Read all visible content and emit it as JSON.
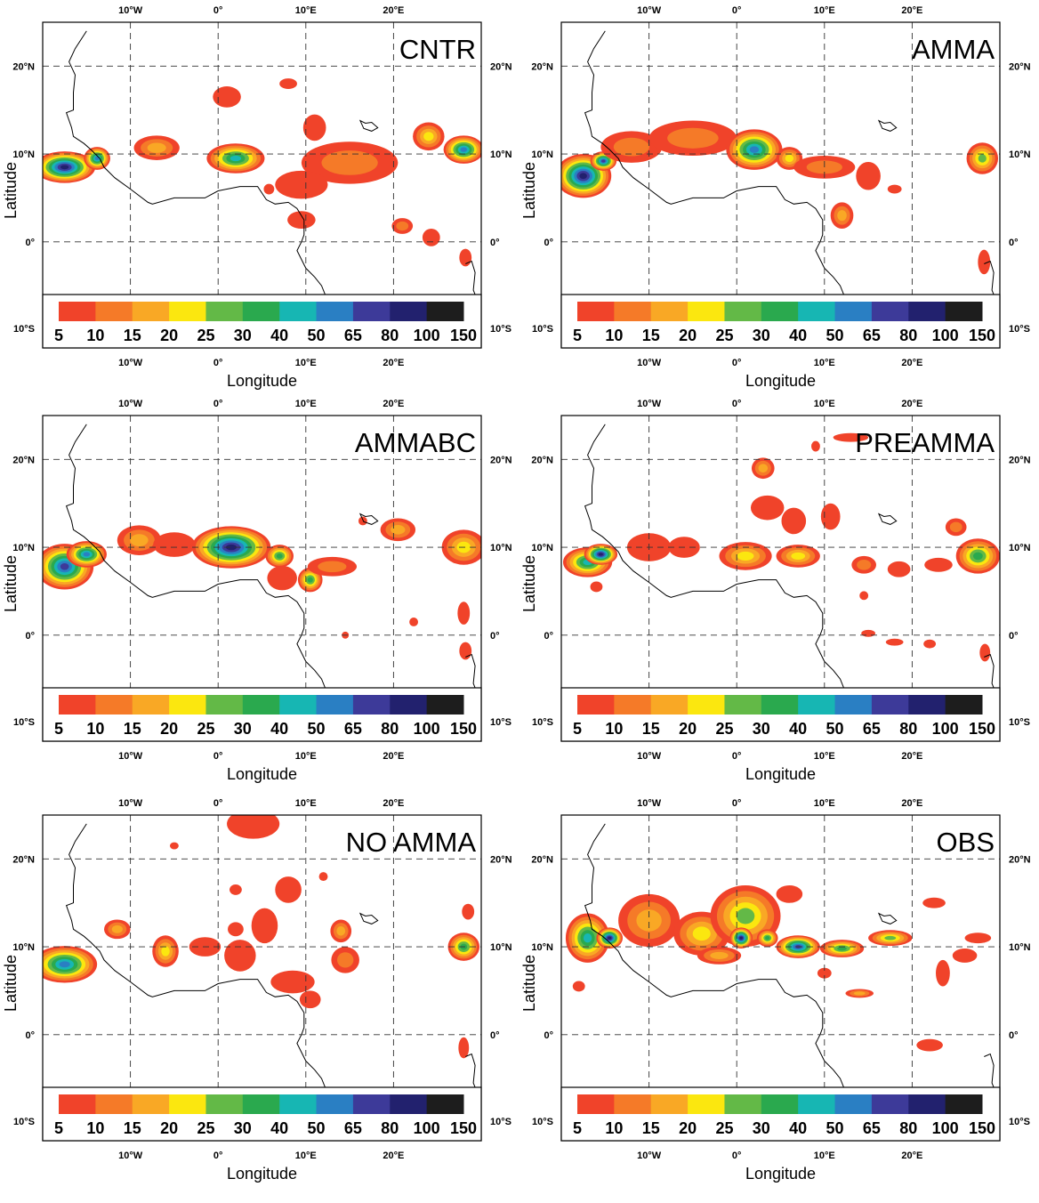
{
  "figure": {
    "colorbar": {
      "levels": [
        "5",
        "10",
        "15",
        "20",
        "25",
        "30",
        "40",
        "50",
        "65",
        "80",
        "100",
        "150"
      ],
      "colors": [
        "#f0432a",
        "#f57a28",
        "#f9a825",
        "#fbe70f",
        "#63b947",
        "#2aa94e",
        "#17b6b3",
        "#2a7fc3",
        "#3d3a99",
        "#22216e",
        "#1d1d1d"
      ]
    },
    "axes": {
      "lon_ticks": [
        "10°W",
        "0°",
        "10°E",
        "20°E"
      ],
      "lat_ticks_left": [
        "20°N",
        "10°N",
        "0°",
        "10°S"
      ],
      "lat_ticks_right": [
        "20°N",
        "10°N",
        "0°",
        "10°S"
      ],
      "xlabel": "Longitude",
      "ylabel": "Latitude"
    },
    "map_extent": {
      "lon": [
        -20,
        30
      ],
      "lat": [
        -6,
        25
      ]
    },
    "panels": [
      {
        "title": "CNTR",
        "blobs": [
          {
            "lon": -17.5,
            "lat": 8.5,
            "rx": 3.5,
            "ry": 1.8,
            "peak": 9
          },
          {
            "lon": -13.8,
            "lat": 9.5,
            "rx": 1.5,
            "ry": 1.3,
            "peak": 7
          },
          {
            "lon": -7,
            "lat": 10.7,
            "rx": 2.6,
            "ry": 1.4,
            "peak": 2
          },
          {
            "lon": 2,
            "lat": 9.5,
            "rx": 3.3,
            "ry": 1.7,
            "peak": 6
          },
          {
            "lon": 1,
            "lat": 16.5,
            "rx": 1.6,
            "ry": 1.2,
            "peak": 0
          },
          {
            "lon": 8,
            "lat": 18,
            "rx": 1,
            "ry": 0.6,
            "peak": 0
          },
          {
            "lon": 11,
            "lat": 13,
            "rx": 1.3,
            "ry": 1.5,
            "peak": 0
          },
          {
            "lon": 15,
            "lat": 9,
            "rx": 5.5,
            "ry": 2.4,
            "peak": 1
          },
          {
            "lon": 9.5,
            "lat": 6.5,
            "rx": 3,
            "ry": 1.6,
            "peak": 0
          },
          {
            "lon": 24,
            "lat": 12,
            "rx": 1.8,
            "ry": 1.6,
            "peak": 3
          },
          {
            "lon": 28,
            "lat": 10.5,
            "rx": 2.3,
            "ry": 1.6,
            "peak": 7
          },
          {
            "lon": 9.5,
            "lat": 2.5,
            "rx": 1.6,
            "ry": 1,
            "peak": 0
          },
          {
            "lon": 21,
            "lat": 1.8,
            "rx": 1.2,
            "ry": 0.9,
            "peak": 1
          },
          {
            "lon": 24.3,
            "lat": 0.5,
            "rx": 1,
            "ry": 1,
            "peak": 0
          },
          {
            "lon": 28.2,
            "lat": -1.8,
            "rx": 0.7,
            "ry": 1,
            "peak": 0
          },
          {
            "lon": 5.8,
            "lat": 6,
            "rx": 0.6,
            "ry": 0.6,
            "peak": 0
          }
        ]
      },
      {
        "title": "AMMA",
        "blobs": [
          {
            "lon": -17.5,
            "lat": 7.5,
            "rx": 3.2,
            "ry": 2.5,
            "peak": 9
          },
          {
            "lon": -15.2,
            "lat": 9.2,
            "rx": 1.5,
            "ry": 1.1,
            "peak": 8
          },
          {
            "lon": -12,
            "lat": 10.8,
            "rx": 3.5,
            "ry": 1.8,
            "peak": 1
          },
          {
            "lon": -5,
            "lat": 11.8,
            "rx": 5,
            "ry": 2,
            "peak": 1
          },
          {
            "lon": 2,
            "lat": 10.5,
            "rx": 3.2,
            "ry": 2.3,
            "peak": 7
          },
          {
            "lon": 6,
            "lat": 9.5,
            "rx": 1.5,
            "ry": 1.3,
            "peak": 3
          },
          {
            "lon": 10,
            "lat": 8.5,
            "rx": 3.5,
            "ry": 1.3,
            "peak": 1
          },
          {
            "lon": 12,
            "lat": 3,
            "rx": 1.3,
            "ry": 1.5,
            "peak": 2
          },
          {
            "lon": 15,
            "lat": 7.5,
            "rx": 1.4,
            "ry": 1.6,
            "peak": 0
          },
          {
            "lon": 28,
            "lat": 9.5,
            "rx": 1.8,
            "ry": 1.8,
            "peak": 4
          },
          {
            "lon": 18,
            "lat": 6,
            "rx": 0.8,
            "ry": 0.5,
            "peak": 0
          },
          {
            "lon": 28.2,
            "lat": -2.3,
            "rx": 0.7,
            "ry": 1.4,
            "peak": 0
          }
        ]
      },
      {
        "title": "AMMABC",
        "blobs": [
          {
            "lon": -17.5,
            "lat": 7.8,
            "rx": 3.3,
            "ry": 2.6,
            "peak": 8
          },
          {
            "lon": -15,
            "lat": 9.2,
            "rx": 2.3,
            "ry": 1.5,
            "peak": 7
          },
          {
            "lon": -9,
            "lat": 10.8,
            "rx": 2.5,
            "ry": 1.7,
            "peak": 2
          },
          {
            "lon": -5,
            "lat": 10.3,
            "rx": 2.4,
            "ry": 1.4,
            "peak": 0
          },
          {
            "lon": 1.5,
            "lat": 10,
            "rx": 4.5,
            "ry": 2.4,
            "peak": 9
          },
          {
            "lon": 7,
            "lat": 9,
            "rx": 1.6,
            "ry": 1.3,
            "peak": 5
          },
          {
            "lon": 7.3,
            "lat": 6.5,
            "rx": 1.7,
            "ry": 1.4,
            "peak": 0
          },
          {
            "lon": 10.5,
            "lat": 6.3,
            "rx": 1.4,
            "ry": 1.4,
            "peak": 5
          },
          {
            "lon": 13,
            "lat": 7.8,
            "rx": 2.8,
            "ry": 1.1,
            "peak": 1
          },
          {
            "lon": 20.5,
            "lat": 12,
            "rx": 2,
            "ry": 1.3,
            "peak": 2
          },
          {
            "lon": 28,
            "lat": 10,
            "rx": 2.5,
            "ry": 2,
            "peak": 3
          },
          {
            "lon": 16.5,
            "lat": 13,
            "rx": 0.5,
            "ry": 0.5,
            "peak": 0
          },
          {
            "lon": 28,
            "lat": 2.5,
            "rx": 0.7,
            "ry": 1.3,
            "peak": 0
          },
          {
            "lon": 28.2,
            "lat": -1.8,
            "rx": 0.7,
            "ry": 1,
            "peak": 0
          },
          {
            "lon": 22.3,
            "lat": 1.5,
            "rx": 0.5,
            "ry": 0.5,
            "peak": 0
          },
          {
            "lon": 14.5,
            "lat": 0,
            "rx": 0.4,
            "ry": 0.4,
            "peak": 0
          }
        ]
      },
      {
        "title": "PREAMMA",
        "blobs": [
          {
            "lon": -17,
            "lat": 8.3,
            "rx": 2.8,
            "ry": 1.7,
            "peak": 6
          },
          {
            "lon": -15.5,
            "lat": 9.2,
            "rx": 1.9,
            "ry": 1.2,
            "peak": 9
          },
          {
            "lon": -10,
            "lat": 10,
            "rx": 2.5,
            "ry": 1.6,
            "peak": 0
          },
          {
            "lon": -6,
            "lat": 10,
            "rx": 1.8,
            "ry": 1.2,
            "peak": 0
          },
          {
            "lon": 1,
            "lat": 9,
            "rx": 3,
            "ry": 1.6,
            "peak": 3
          },
          {
            "lon": 7,
            "lat": 9,
            "rx": 2.5,
            "ry": 1.3,
            "peak": 3
          },
          {
            "lon": 3,
            "lat": 19,
            "rx": 1.3,
            "ry": 1.2,
            "peak": 2
          },
          {
            "lon": 3.5,
            "lat": 14.5,
            "rx": 1.9,
            "ry": 1.4,
            "peak": 0
          },
          {
            "lon": 6.5,
            "lat": 13,
            "rx": 1.4,
            "ry": 1.5,
            "peak": 0
          },
          {
            "lon": 10.7,
            "lat": 13.5,
            "rx": 1.1,
            "ry": 1.5,
            "peak": 0
          },
          {
            "lon": 14.5,
            "lat": 8,
            "rx": 1.4,
            "ry": 1,
            "peak": 1
          },
          {
            "lon": 18.5,
            "lat": 7.5,
            "rx": 1.3,
            "ry": 0.9,
            "peak": 0
          },
          {
            "lon": 25,
            "lat": 12.3,
            "rx": 1.2,
            "ry": 1,
            "peak": 1
          },
          {
            "lon": 27.5,
            "lat": 9,
            "rx": 2.5,
            "ry": 2,
            "peak": 5
          },
          {
            "lon": 23,
            "lat": 8,
            "rx": 1.6,
            "ry": 0.8,
            "peak": 0
          },
          {
            "lon": 9,
            "lat": 21.5,
            "rx": 0.5,
            "ry": 0.6,
            "peak": 0
          },
          {
            "lon": 13,
            "lat": 22.5,
            "rx": 2,
            "ry": 0.5,
            "peak": 0
          },
          {
            "lon": 28.3,
            "lat": -2,
            "rx": 0.6,
            "ry": 1,
            "peak": 0
          },
          {
            "lon": 22,
            "lat": -1,
            "rx": 0.7,
            "ry": 0.5,
            "peak": 0
          },
          {
            "lon": 15,
            "lat": 0.2,
            "rx": 0.8,
            "ry": 0.4,
            "peak": 0
          },
          {
            "lon": 18,
            "lat": -0.8,
            "rx": 1,
            "ry": 0.4,
            "peak": 0
          },
          {
            "lon": -16,
            "lat": 5.5,
            "rx": 0.7,
            "ry": 0.6,
            "peak": 0
          },
          {
            "lon": 14.5,
            "lat": 4.5,
            "rx": 0.5,
            "ry": 0.5,
            "peak": 0
          }
        ]
      },
      {
        "title": "NO AMMA",
        "blobs": [
          {
            "lon": -17.5,
            "lat": 8,
            "rx": 3.7,
            "ry": 2.1,
            "peak": 7
          },
          {
            "lon": -11.5,
            "lat": 12,
            "rx": 1.5,
            "ry": 1.1,
            "peak": 2
          },
          {
            "lon": -6,
            "lat": 9.5,
            "rx": 1.5,
            "ry": 1.8,
            "peak": 3
          },
          {
            "lon": -1.5,
            "lat": 10,
            "rx": 1.8,
            "ry": 1.1,
            "peak": 0
          },
          {
            "lon": 2.5,
            "lat": 9,
            "rx": 1.8,
            "ry": 1.8,
            "peak": 0
          },
          {
            "lon": 5.3,
            "lat": 12.4,
            "rx": 1.5,
            "ry": 2,
            "peak": 0
          },
          {
            "lon": 8,
            "lat": 16.5,
            "rx": 1.5,
            "ry": 1.5,
            "peak": 0
          },
          {
            "lon": 4,
            "lat": 24,
            "rx": 3,
            "ry": 1.7,
            "peak": 0
          },
          {
            "lon": 2,
            "lat": 16.5,
            "rx": 0.7,
            "ry": 0.6,
            "peak": 0
          },
          {
            "lon": 2,
            "lat": 12,
            "rx": 0.9,
            "ry": 0.8,
            "peak": 0
          },
          {
            "lon": 8.5,
            "lat": 6,
            "rx": 2.5,
            "ry": 1.3,
            "peak": 0
          },
          {
            "lon": 10.5,
            "lat": 4,
            "rx": 1.2,
            "ry": 1,
            "peak": 0
          },
          {
            "lon": 14,
            "lat": 11.8,
            "rx": 1.2,
            "ry": 1.3,
            "peak": 2
          },
          {
            "lon": 14.5,
            "lat": 8.5,
            "rx": 1.6,
            "ry": 1.5,
            "peak": 1
          },
          {
            "lon": 28,
            "lat": 10,
            "rx": 1.8,
            "ry": 1.6,
            "peak": 5
          },
          {
            "lon": 28.5,
            "lat": 14,
            "rx": 0.7,
            "ry": 0.9,
            "peak": 0
          },
          {
            "lon": 28,
            "lat": -1.5,
            "rx": 0.6,
            "ry": 1.2,
            "peak": 0
          },
          {
            "lon": -5,
            "lat": 21.5,
            "rx": 0.5,
            "ry": 0.4,
            "peak": 0
          },
          {
            "lon": 12,
            "lat": 18,
            "rx": 0.5,
            "ry": 0.5,
            "peak": 0
          }
        ]
      },
      {
        "title": "OBS",
        "blobs": [
          {
            "lon": -17,
            "lat": 11,
            "rx": 2.5,
            "ry": 2.8,
            "peak": 6
          },
          {
            "lon": -14.5,
            "lat": 11,
            "rx": 1.5,
            "ry": 1.2,
            "peak": 9
          },
          {
            "lon": -10,
            "lat": 13,
            "rx": 3.5,
            "ry": 3,
            "peak": 2
          },
          {
            "lon": -4,
            "lat": 11.5,
            "rx": 3.2,
            "ry": 2.5,
            "peak": 3
          },
          {
            "lon": 1,
            "lat": 13.5,
            "rx": 4,
            "ry": 3.5,
            "peak": 4
          },
          {
            "lon": 0.5,
            "lat": 11,
            "rx": 1.3,
            "ry": 1.2,
            "peak": 9
          },
          {
            "lon": 3.5,
            "lat": 11,
            "rx": 1.2,
            "ry": 1,
            "peak": 5
          },
          {
            "lon": 7,
            "lat": 10,
            "rx": 2.5,
            "ry": 1.3,
            "peak": 8
          },
          {
            "lon": 12,
            "lat": 9.8,
            "rx": 2.5,
            "ry": 1,
            "peak": 5
          },
          {
            "lon": 17.5,
            "lat": 11,
            "rx": 2.5,
            "ry": 0.9,
            "peak": 4
          },
          {
            "lon": -2,
            "lat": 9,
            "rx": 2.5,
            "ry": 1,
            "peak": 2
          },
          {
            "lon": 6,
            "lat": 16,
            "rx": 1.5,
            "ry": 1,
            "peak": 0
          },
          {
            "lon": 22.5,
            "lat": 15,
            "rx": 1.3,
            "ry": 0.6,
            "peak": 0
          },
          {
            "lon": 14,
            "lat": 4.7,
            "rx": 1.6,
            "ry": 0.5,
            "peak": 2
          },
          {
            "lon": 22,
            "lat": -1.2,
            "rx": 1.5,
            "ry": 0.7,
            "peak": 0
          },
          {
            "lon": 23.5,
            "lat": 7,
            "rx": 0.8,
            "ry": 1.5,
            "peak": 0
          },
          {
            "lon": 26,
            "lat": 9,
            "rx": 1.4,
            "ry": 0.8,
            "peak": 0
          },
          {
            "lon": -18,
            "lat": 5.5,
            "rx": 0.7,
            "ry": 0.6,
            "peak": 0
          },
          {
            "lon": 27.5,
            "lat": 11,
            "rx": 1.5,
            "ry": 0.6,
            "peak": 0
          },
          {
            "lon": 10,
            "lat": 7,
            "rx": 0.8,
            "ry": 0.6,
            "peak": 0
          }
        ]
      }
    ]
  }
}
